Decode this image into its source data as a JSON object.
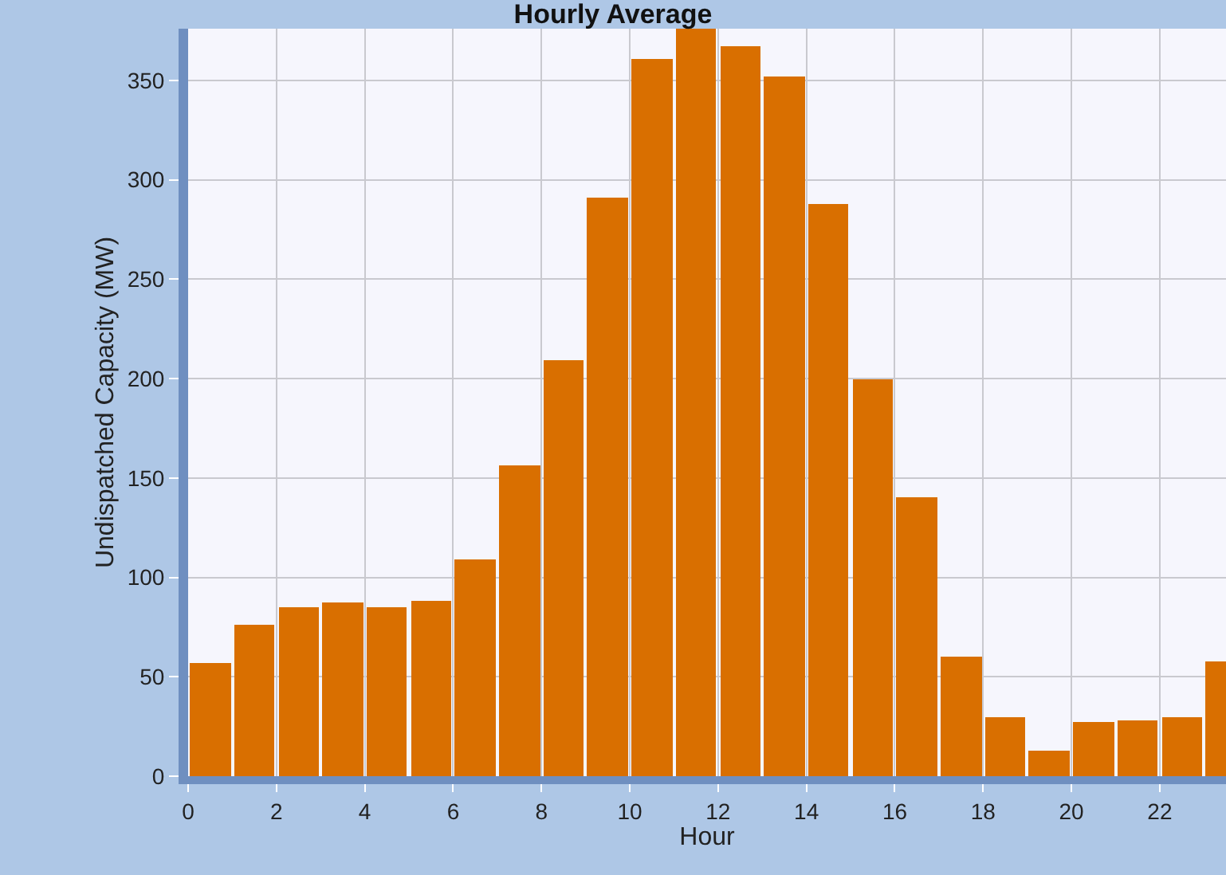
{
  "chart_data": {
    "type": "histogram",
    "title": "Hourly Average",
    "xlabel": "Hour",
    "ylabel": "Undispatched Capacity (MW)",
    "bins": [
      0,
      1,
      2,
      3,
      4,
      5,
      6,
      7,
      8,
      9,
      10,
      11,
      12,
      13,
      14,
      15,
      16,
      17,
      18,
      19,
      20,
      21,
      22,
      23,
      24
    ],
    "values": [
      57,
      76,
      85,
      87,
      85,
      88,
      109,
      156,
      209,
      291,
      361,
      376,
      367,
      352,
      288,
      200,
      140,
      60,
      30,
      13,
      27,
      28,
      30,
      58
    ],
    "color": "#d96f00",
    "xlim": [
      0,
      23.5
    ],
    "xticks": [
      0,
      2,
      4,
      6,
      8,
      10,
      12,
      14,
      16,
      18,
      20,
      22
    ],
    "ylim": [
      0,
      376
    ],
    "yticks": [
      0,
      50,
      100,
      150,
      200,
      250,
      300,
      350
    ],
    "grid": true,
    "legend": false
  }
}
